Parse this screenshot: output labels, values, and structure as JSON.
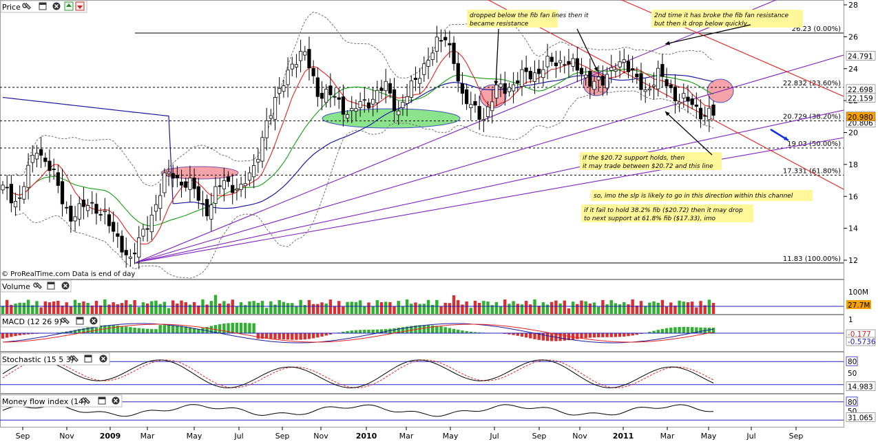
{
  "panels": {
    "price": {
      "title": "Price"
    },
    "volume": {
      "title": "Volume"
    },
    "macd": {
      "title": "MACD (12 26 9)"
    },
    "stochastic": {
      "title": "Stochastic (15 5 3)"
    },
    "mfi": {
      "title": "Money flow index (14)"
    }
  },
  "watermark": "© ProRealTime.com  Data is end of day",
  "colors": {
    "candle": "#000000",
    "ma_short": "#e8211e",
    "ma_mid": "#10a010",
    "ma_long": "#1a1aa0",
    "bollinger": "#707070",
    "fan": "#8020c0",
    "channel": "#e82020",
    "highlight": "#fff799",
    "up_volume": "#30b030",
    "down_volume": "#d83030",
    "blue_line": "#2020c0"
  },
  "chart_data": [
    {
      "type": "candlestick",
      "title": "Price",
      "x_axis": {
        "ticks": [
          "Sep",
          "Nov",
          "2009",
          "Mar",
          "May",
          "Jul",
          "Sep",
          "Nov",
          "2010",
          "Mar",
          "May",
          "Jul",
          "Sep",
          "Nov",
          "2011",
          "Mar",
          "May",
          "Jul",
          "Sep"
        ],
        "range": [
          "2008-08",
          "2011-09"
        ]
      },
      "y_axis": {
        "range": [
          11.2,
          28.4
        ],
        "ticks": [
          12,
          14,
          16,
          18,
          20,
          22,
          24,
          26,
          28
        ],
        "position": "right"
      },
      "current_values": {
        "bollinger_upper": "24.791",
        "ma_short": "22.698",
        "ma_long": "22.159",
        "close": "20.980",
        "bollinger_lower": "20.806"
      },
      "fibonacci_levels": [
        {
          "value": 26.23,
          "label": "26.23 (0.00%)"
        },
        {
          "value": 22.832,
          "label": "22.832 (23.60%)"
        },
        {
          "value": 20.729,
          "label": "20.729 (38.20%)"
        },
        {
          "value": 19.03,
          "label": "19.03 (50.00%)"
        },
        {
          "value": 17.331,
          "label": "17.331 (61.80%)"
        },
        {
          "value": 11.83,
          "label": "11.83 (100.00%)"
        }
      ],
      "annotations": [
        "dropped below the fib fan lines then it became resistance",
        "2nd time it has broke the fib fan resistance but then it drop below quickly",
        "if the $20.72 support holds, then it may trade between $20.72 and this line",
        "so, imo the slp is likely to go in this direction within this channel",
        "if it fail to hold 38.2% fib ($20.72) then it may drop to next support at 61.8% fib ($17.33), imo"
      ]
    },
    {
      "type": "bar",
      "title": "Volume",
      "y_axis": {
        "ticks": [
          "100M"
        ]
      },
      "current_value": "27.7M"
    },
    {
      "type": "bar",
      "title": "MACD (12 26 9)",
      "y_axis": {
        "ticks": [
          "1"
        ]
      },
      "current_values": [
        "-0.177",
        "-0.5736"
      ]
    },
    {
      "type": "line",
      "title": "Stochastic (15 5 3)",
      "y_axis": {
        "range": [
          0,
          100
        ],
        "ticks": [
          "80",
          "50"
        ]
      },
      "current_value": "14.983"
    },
    {
      "type": "line",
      "title": "Money flow index (14)",
      "y_axis": {
        "range": [
          0,
          100
        ],
        "ticks": [
          "80",
          "50"
        ]
      },
      "current_value": "31.065"
    }
  ]
}
